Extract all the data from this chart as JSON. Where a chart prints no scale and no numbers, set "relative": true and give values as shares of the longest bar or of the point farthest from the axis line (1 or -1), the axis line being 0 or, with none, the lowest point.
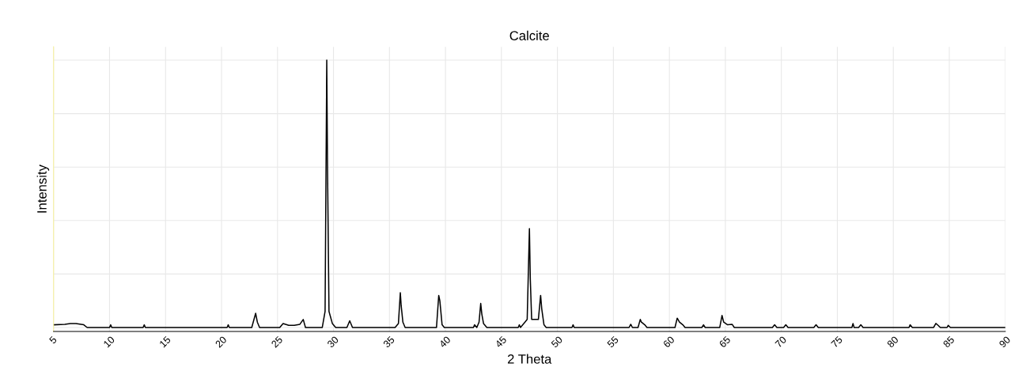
{
  "chart_data": {
    "type": "line",
    "title": "Calcite",
    "xlabel": "2 Theta",
    "ylabel": "Intensity",
    "relative": true,
    "grid": true,
    "marker": "none",
    "line_style": "solid",
    "xlim": [
      5,
      90
    ],
    "xticks": [
      5,
      10,
      15,
      20,
      25,
      30,
      35,
      40,
      45,
      50,
      55,
      60,
      65,
      70,
      75,
      80,
      85,
      90
    ],
    "x": [
      5,
      6,
      6.5,
      7,
      7.7,
      8,
      10,
      10.1,
      10.2,
      13,
      13.1,
      13.2,
      20.5,
      20.6,
      20.7,
      22.7,
      23.05,
      23.2,
      23.4,
      25.2,
      25.5,
      26,
      26.5,
      27,
      27.3,
      27.5,
      29.0,
      29.25,
      29.4,
      29.47,
      29.6,
      29.9,
      30.2,
      31.2,
      31.45,
      31.7,
      35.5,
      35.8,
      35.97,
      36.05,
      36.2,
      36.4,
      39.2,
      39.4,
      39.5,
      39.7,
      39.9,
      42.5,
      42.6,
      42.8,
      43.0,
      43.15,
      43.25,
      43.4,
      43.7,
      46.5,
      46.6,
      46.7,
      47.1,
      47.3,
      47.5,
      47.58,
      47.7,
      48.3,
      48.5,
      48.6,
      48.8,
      49.0,
      51.3,
      51.4,
      51.5,
      56.4,
      56.55,
      56.7,
      57.2,
      57.4,
      57.5,
      57.8,
      58,
      60.5,
      60.7,
      60.9,
      61.2,
      61.4,
      62.9,
      63.05,
      63.2,
      64.5,
      64.7,
      64.85,
      65.2,
      65.6,
      65.8,
      69.2,
      69.4,
      69.6,
      70.2,
      70.4,
      70.6,
      72.9,
      73.1,
      73.3,
      76.3,
      76.4,
      76.5,
      76.9,
      77.1,
      77.3,
      81.4,
      81.5,
      81.7,
      83.6,
      83.8,
      84,
      84.2,
      84.8,
      84.9,
      85.1,
      90
    ],
    "series": [
      {
        "color": "#000000",
        "values": [
          0.01,
          0.012,
          0.015,
          0.015,
          0.01,
          0,
          0,
          0.01,
          0,
          0,
          0.01,
          0,
          0,
          0.01,
          0,
          0,
          0.053,
          0.02,
          0,
          0,
          0.015,
          0.008,
          0.008,
          0.012,
          0.03,
          0,
          0,
          0.06,
          1.0,
          0.59,
          0.06,
          0.015,
          0,
          0,
          0.025,
          0,
          0,
          0.015,
          0.13,
          0.08,
          0.02,
          0,
          0,
          0.12,
          0.1,
          0.01,
          0,
          0,
          0.01,
          0,
          0.02,
          0.09,
          0.05,
          0.015,
          0,
          0,
          0.01,
          0,
          0.02,
          0.03,
          0.37,
          0.18,
          0.03,
          0.03,
          0.12,
          0.07,
          0.01,
          0,
          0,
          0.01,
          0,
          0,
          0.012,
          0,
          0,
          0.03,
          0.02,
          0.01,
          0,
          0,
          0.035,
          0.02,
          0.01,
          0,
          0,
          0.01,
          0,
          0,
          0.045,
          0.02,
          0.01,
          0.012,
          0,
          0,
          0.01,
          0,
          0,
          0.01,
          0,
          0,
          0.01,
          0,
          0,
          0.015,
          0,
          0,
          0.01,
          0,
          0,
          0.01,
          0,
          0,
          0.015,
          0.008,
          0,
          0,
          0.008,
          0,
          0
        ]
      }
    ]
  }
}
